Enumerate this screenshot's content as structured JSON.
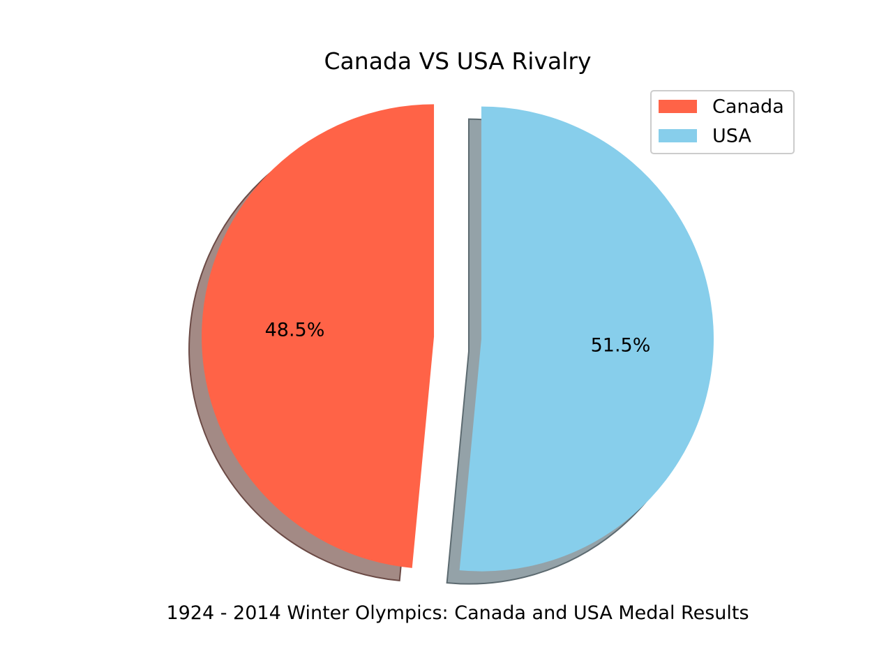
{
  "chart_data": {
    "type": "pie",
    "title": "Canada VS USA Rivalry",
    "xlabel": "1924 - 2014 Winter Olympics: Canada and USA Medal Results",
    "start_angle_deg": 90,
    "direction": "counterclockwise",
    "shadow": true,
    "exploded": true,
    "legend_position": "top-right",
    "slices": [
      {
        "label": "Canada",
        "value": 48.5,
        "display": "48.5%",
        "color": "#FF6347",
        "shadow_color": "#A38A85",
        "shadow_edge": "#6B4A45"
      },
      {
        "label": "USA",
        "value": 51.5,
        "display": "51.5%",
        "color": "#87CEEB",
        "shadow_color": "#94A2A8",
        "shadow_edge": "#5C6A70"
      }
    ]
  }
}
